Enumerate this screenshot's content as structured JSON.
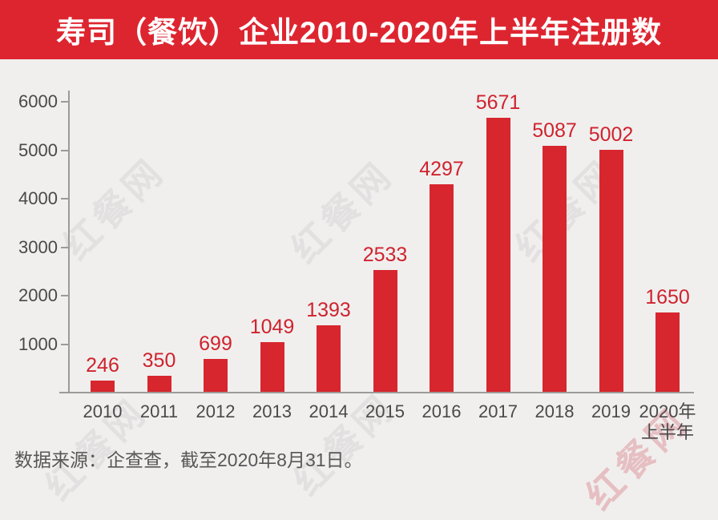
{
  "header": {
    "title": "寿司（餐饮）企业2010-2020年上半年注册数"
  },
  "chart_data": {
    "type": "bar",
    "title": "寿司（餐饮）企业2010-2020年上半年注册数",
    "categories": [
      "2010",
      "2011",
      "2012",
      "2013",
      "2014",
      "2015",
      "2016",
      "2017",
      "2018",
      "2019",
      "2020年上半年"
    ],
    "xtick_lines": [
      [
        "2010"
      ],
      [
        "2011"
      ],
      [
        "2012"
      ],
      [
        "2013"
      ],
      [
        "2014"
      ],
      [
        "2015"
      ],
      [
        "2016"
      ],
      [
        "2017"
      ],
      [
        "2018"
      ],
      [
        "2019"
      ],
      [
        "2020年",
        "上半年"
      ]
    ],
    "values": [
      246,
      350,
      699,
      1049,
      1393,
      2533,
      4297,
      5671,
      5087,
      5002,
      1650
    ],
    "value_labels": [
      "246",
      "350",
      "699",
      "1049",
      "1393",
      "2533",
      "4297",
      "5671",
      "5087",
      "5002",
      "1650"
    ],
    "xlabel": "",
    "ylabel": "",
    "ylim": [
      0,
      6000
    ],
    "yticks": [
      1000,
      2000,
      3000,
      4000,
      5000,
      6000
    ],
    "grid": false,
    "legend": null,
    "bar_color": "#d8262e",
    "value_label_color": "#cf232e"
  },
  "footer": {
    "source_note": "数据来源：企查查，截至2020年8月31日。"
  },
  "watermark": {
    "text": "红餐网"
  },
  "colors": {
    "banner_background": "#dd2530",
    "page_background": "#f0efee",
    "axis": "#9c9a9a",
    "tick_label": "#4b4849",
    "source_text": "#5a5657"
  }
}
